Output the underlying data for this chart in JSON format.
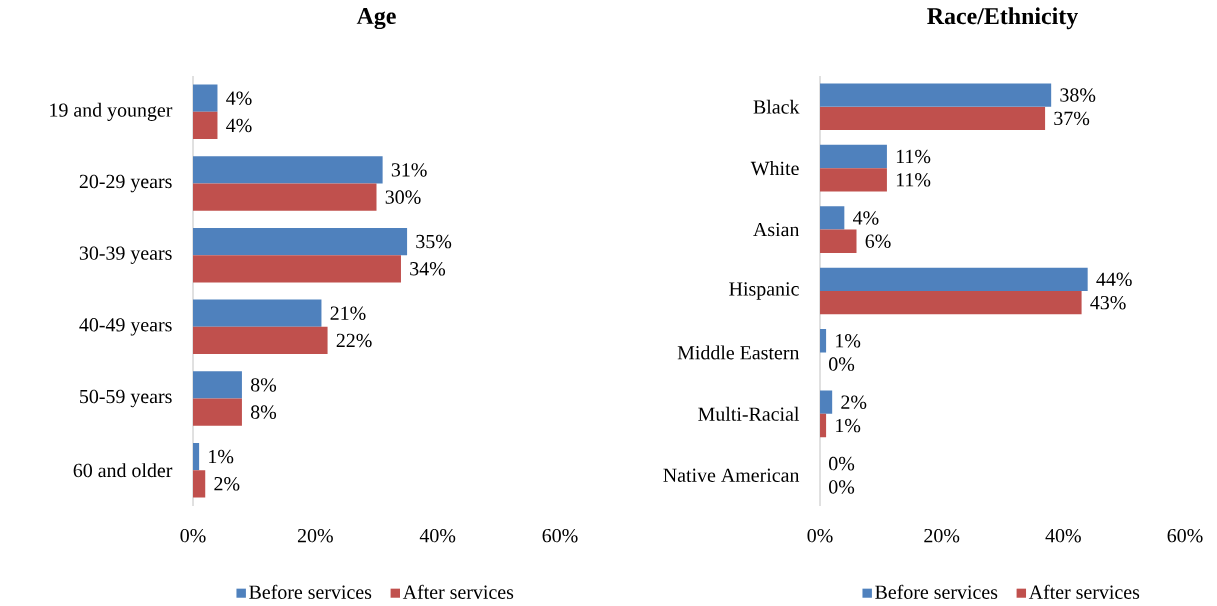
{
  "chart_data": [
    {
      "type": "bar",
      "orientation": "horizontal",
      "title": "Age",
      "categories": [
        "19 and younger",
        "20-29 years",
        "30-39 years",
        "40-49 years",
        "50-59 years",
        "60 and older"
      ],
      "series": [
        {
          "name": "Before services",
          "color": "#4f81bd",
          "values": [
            4,
            31,
            35,
            21,
            8,
            1
          ],
          "value_labels": [
            "4%",
            "31%",
            "35%",
            "21%",
            "8%",
            "1%"
          ]
        },
        {
          "name": "After services",
          "color": "#c0504d",
          "values": [
            4,
            30,
            34,
            22,
            8,
            2
          ],
          "value_labels": [
            "4%",
            "30%",
            "34%",
            "22%",
            "8%",
            "2%"
          ]
        }
      ],
      "xlim": [
        0,
        60
      ],
      "xticks": [
        {
          "value": 0,
          "label": "0%"
        },
        {
          "value": 20,
          "label": "20%"
        },
        {
          "value": 40,
          "label": "40%"
        },
        {
          "value": 60,
          "label": "60%"
        }
      ],
      "legend": "bottom"
    },
    {
      "type": "bar",
      "orientation": "horizontal",
      "title": "Race/Ethnicity",
      "categories": [
        "Black",
        "White",
        "Asian",
        "Hispanic",
        "Middle Eastern",
        "Multi-Racial",
        "Native American"
      ],
      "series": [
        {
          "name": "Before services",
          "color": "#4f81bd",
          "values": [
            38,
            11,
            4,
            44,
            1,
            2,
            0
          ],
          "value_labels": [
            "38%",
            "11%",
            "4%",
            "44%",
            "1%",
            "2%",
            "0%"
          ]
        },
        {
          "name": "After services",
          "color": "#c0504d",
          "values": [
            37,
            11,
            6,
            43,
            0,
            1,
            0
          ],
          "value_labels": [
            "37%",
            "11%",
            "6%",
            "43%",
            "0%",
            "1%",
            "0%"
          ]
        }
      ],
      "xlim": [
        0,
        60
      ],
      "xticks": [
        {
          "value": 0,
          "label": "0%"
        },
        {
          "value": 20,
          "label": "20%"
        },
        {
          "value": 40,
          "label": "40%"
        },
        {
          "value": 60,
          "label": "60%"
        }
      ],
      "legend": "bottom"
    }
  ]
}
